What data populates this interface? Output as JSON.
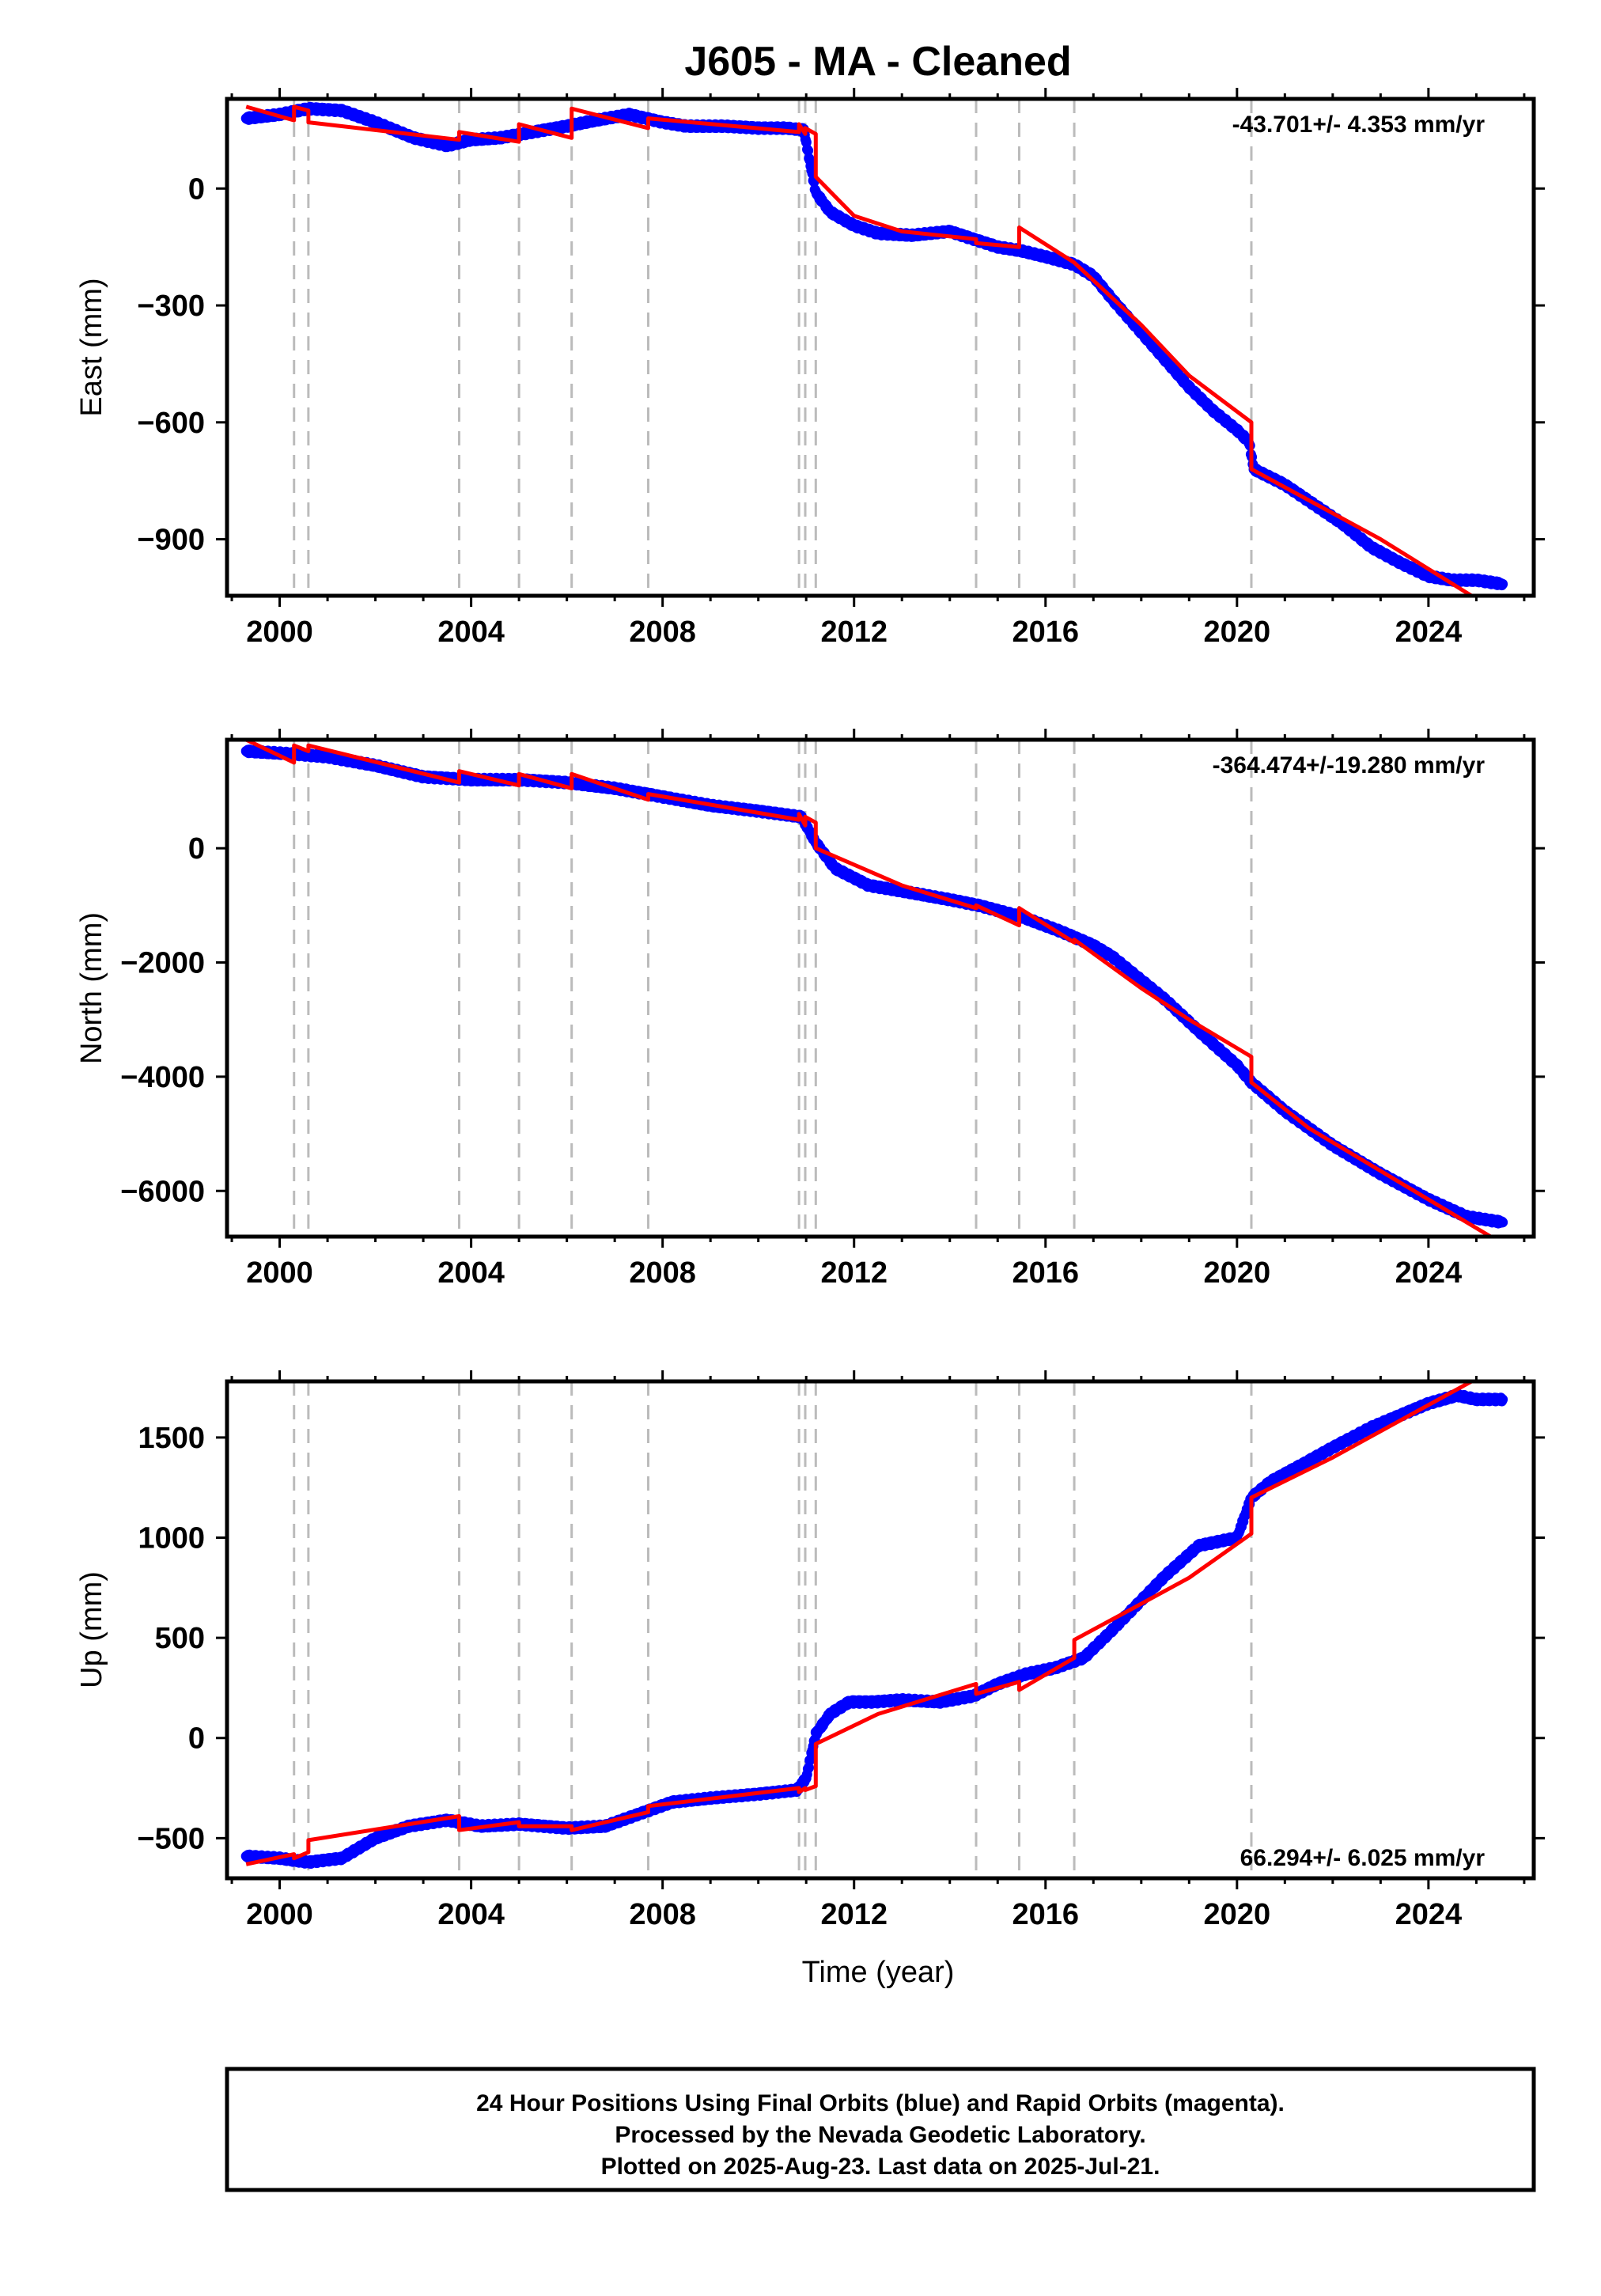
{
  "title": "J605  - MA - Cleaned",
  "xlabel": "Time (year)",
  "footer": {
    "line1": "24 Hour Positions Using Final Orbits (blue) and Rapid Orbits (magenta).",
    "line2": "Processed by the Nevada Geodetic Laboratory.",
    "line3": "Plotted on 2025-Aug-23. Last data on 2025-Jul-21."
  },
  "colors": {
    "data": "#0000ff",
    "model": "#ff0000",
    "offsets": "#bbbbbb",
    "frame": "#000000"
  },
  "chart_data": [
    {
      "type": "scatter",
      "panel": "East",
      "ylabel": "East (mm)",
      "rate_label": "-43.701+/- 4.353 mm/yr",
      "rate_position": "top-right",
      "xlim": [
        1998.9,
        2026.2
      ],
      "ylim": [
        -1045,
        230
      ],
      "xticks": [
        2000,
        2004,
        2008,
        2012,
        2016,
        2020,
        2024
      ],
      "yticks": [
        0,
        -300,
        -600,
        -900
      ],
      "offset_lines": [
        2000.3,
        2000.6,
        2003.75,
        2005.0,
        2006.1,
        2007.7,
        2010.85,
        2010.98,
        2011.2,
        2014.55,
        2015.45,
        2016.6,
        2020.3
      ],
      "series": [
        {
          "style": "points",
          "x": [
            1999.3,
            2000.0,
            2000.6,
            2001.3,
            2002.0,
            2002.8,
            2003.5,
            2004.0,
            2004.6,
            2005.3,
            2006.0,
            2006.6,
            2007.3,
            2008.0,
            2008.5,
            2009.3,
            2010.0,
            2010.6,
            2010.95,
            2011.2,
            2011.5,
            2012.0,
            2012.5,
            2013.2,
            2014.0,
            2014.5,
            2015.0,
            2015.5,
            2016.0,
            2016.6,
            2017.0,
            2017.4,
            2018.5,
            2019.0,
            2019.5,
            2020.0,
            2020.25,
            2020.35,
            2021.0,
            2021.6,
            2022.2,
            2022.8,
            2023.4,
            2024.0,
            2024.5,
            2025.0,
            2025.55
          ],
          "y": [
            180,
            190,
            205,
            200,
            170,
            130,
            110,
            125,
            130,
            145,
            160,
            175,
            190,
            170,
            160,
            160,
            155,
            155,
            150,
            -10,
            -60,
            -95,
            -115,
            -120,
            -110,
            -130,
            -150,
            -160,
            -175,
            -195,
            -225,
            -285,
            -440,
            -510,
            -570,
            -620,
            -650,
            -720,
            -760,
            -810,
            -860,
            -920,
            -960,
            -995,
            -1005,
            -1005,
            -1015
          ]
        },
        {
          "style": "line",
          "x": [
            1999.3,
            2000.3,
            2000.3,
            2000.6,
            2000.6,
            2003.75,
            2003.75,
            2005.0,
            2005.0,
            2006.1,
            2006.1,
            2007.7,
            2007.7,
            2010.85,
            2010.85,
            2010.98,
            2010.98,
            2011.2,
            2011.2,
            2012.0,
            2013.0,
            2014.55,
            2014.55,
            2015.45,
            2015.45,
            2016.6,
            2016.6,
            2018.0,
            2019.0,
            2020.3,
            2020.3,
            2021.5,
            2023.0,
            2024.9
          ],
          "y": [
            210,
            175,
            210,
            200,
            170,
            125,
            145,
            120,
            165,
            130,
            205,
            155,
            180,
            145,
            165,
            140,
            155,
            140,
            30,
            -70,
            -110,
            -130,
            -140,
            -150,
            -100,
            -190,
            -190,
            -350,
            -480,
            -600,
            -720,
            -800,
            -900,
            -1045
          ]
        }
      ]
    },
    {
      "type": "scatter",
      "panel": "North",
      "ylabel": "North (mm)",
      "rate_label": "-364.474+/-19.280 mm/yr",
      "rate_position": "top-right",
      "xlim": [
        1998.9,
        2026.2
      ],
      "ylim": [
        -6800,
        1900
      ],
      "xticks": [
        2000,
        2004,
        2008,
        2012,
        2016,
        2020,
        2024
      ],
      "yticks": [
        0,
        -2000,
        -4000,
        -6000
      ],
      "offset_lines": [
        2000.3,
        2000.6,
        2003.75,
        2005.0,
        2006.1,
        2007.7,
        2010.85,
        2010.98,
        2011.2,
        2014.55,
        2015.45,
        2016.6,
        2020.3
      ],
      "series": [
        {
          "style": "points",
          "x": [
            1999.3,
            2000.3,
            2001.0,
            2002.0,
            2003.0,
            2004.0,
            2005.0,
            2006.0,
            2007.0,
            2008.0,
            2009.0,
            2010.0,
            2010.9,
            2011.2,
            2011.6,
            2012.3,
            2013.0,
            2014.0,
            2014.6,
            2015.5,
            2016.3,
            2017.0,
            2017.4,
            2018.5,
            2019.2,
            2020.0,
            2020.3,
            2021.0,
            2022.0,
            2023.0,
            2024.0,
            2024.8,
            2025.55
          ],
          "y": [
            1700,
            1650,
            1600,
            1450,
            1250,
            1200,
            1200,
            1150,
            1050,
            900,
            750,
            650,
            550,
            100,
            -350,
            -650,
            -750,
            -900,
            -1000,
            -1200,
            -1450,
            -1700,
            -1900,
            -2650,
            -3200,
            -3800,
            -4100,
            -4600,
            -5200,
            -5700,
            -6150,
            -6450,
            -6550
          ]
        },
        {
          "style": "line",
          "x": [
            1999.3,
            2000.3,
            2000.3,
            2000.6,
            2000.6,
            2003.75,
            2003.75,
            2005.0,
            2005.0,
            2006.1,
            2006.1,
            2007.7,
            2007.7,
            2010.85,
            2010.85,
            2010.98,
            2010.98,
            2011.2,
            2011.2,
            2013.0,
            2014.55,
            2014.55,
            2015.45,
            2015.45,
            2016.6,
            2016.6,
            2018.0,
            2019.0,
            2020.3,
            2020.3,
            2021.5,
            2023.0,
            2025.3
          ],
          "y": [
            1900,
            1500,
            1800,
            1700,
            1800,
            1150,
            1350,
            1100,
            1300,
            1050,
            1300,
            850,
            950,
            500,
            600,
            400,
            550,
            450,
            0,
            -650,
            -1050,
            -1000,
            -1350,
            -1050,
            -1650,
            -1600,
            -2450,
            -3000,
            -3650,
            -4100,
            -4900,
            -5650,
            -6800
          ]
        }
      ]
    },
    {
      "type": "scatter",
      "panel": "Up",
      "ylabel": "Up (mm)",
      "rate_label": "66.294+/- 6.025 mm/yr",
      "rate_position": "bottom-right",
      "xlim": [
        1998.9,
        2026.2
      ],
      "ylim": [
        -700,
        1780
      ],
      "xticks": [
        2000,
        2004,
        2008,
        2012,
        2016,
        2020,
        2024
      ],
      "yticks": [
        1500,
        1000,
        500,
        0,
        -500
      ],
      "offset_lines": [
        2000.3,
        2000.6,
        2003.75,
        2005.0,
        2006.1,
        2007.7,
        2010.85,
        2010.98,
        2011.2,
        2014.55,
        2015.45,
        2016.6,
        2020.3
      ],
      "series": [
        {
          "style": "points",
          "x": [
            1999.3,
            2000.0,
            2000.6,
            2001.3,
            2002.0,
            2002.7,
            2003.5,
            2004.2,
            2005.0,
            2006.0,
            2006.8,
            2007.5,
            2008.2,
            2009.0,
            2010.0,
            2010.8,
            2011.0,
            2011.2,
            2011.5,
            2011.9,
            2012.4,
            2013.0,
            2013.8,
            2014.5,
            2015.0,
            2015.6,
            2016.2,
            2016.8,
            2017.4,
            2018.5,
            2019.2,
            2020.0,
            2020.3,
            2020.7,
            2021.4,
            2022.0,
            2022.8,
            2023.5,
            2024.0,
            2024.6,
            2025.0,
            2025.55
          ],
          "y": [
            -590,
            -600,
            -620,
            -600,
            -500,
            -440,
            -410,
            -440,
            -430,
            -450,
            -440,
            -380,
            -320,
            -300,
            -280,
            -260,
            -200,
            20,
            120,
            180,
            180,
            190,
            180,
            210,
            270,
            320,
            350,
            400,
            540,
            810,
            960,
            1000,
            1200,
            1280,
            1370,
            1450,
            1550,
            1620,
            1670,
            1710,
            1690,
            1690
          ]
        },
        {
          "style": "line",
          "x": [
            1999.3,
            2000.3,
            2000.3,
            2000.6,
            2000.6,
            2003.75,
            2003.75,
            2005.0,
            2005.0,
            2006.1,
            2006.1,
            2007.7,
            2007.7,
            2010.85,
            2010.85,
            2010.98,
            2010.98,
            2011.2,
            2011.2,
            2012.5,
            2014.55,
            2014.55,
            2015.45,
            2015.45,
            2016.6,
            2016.6,
            2018.0,
            2019.0,
            2020.3,
            2020.3,
            2022.0,
            2024.9
          ],
          "y": [
            -630,
            -580,
            -600,
            -570,
            -510,
            -390,
            -460,
            -420,
            -440,
            -440,
            -460,
            -370,
            -340,
            -250,
            -270,
            -250,
            -260,
            -240,
            -30,
            120,
            270,
            220,
            280,
            240,
            400,
            490,
            670,
            800,
            1020,
            1200,
            1400,
            1780
          ]
        }
      ]
    }
  ]
}
